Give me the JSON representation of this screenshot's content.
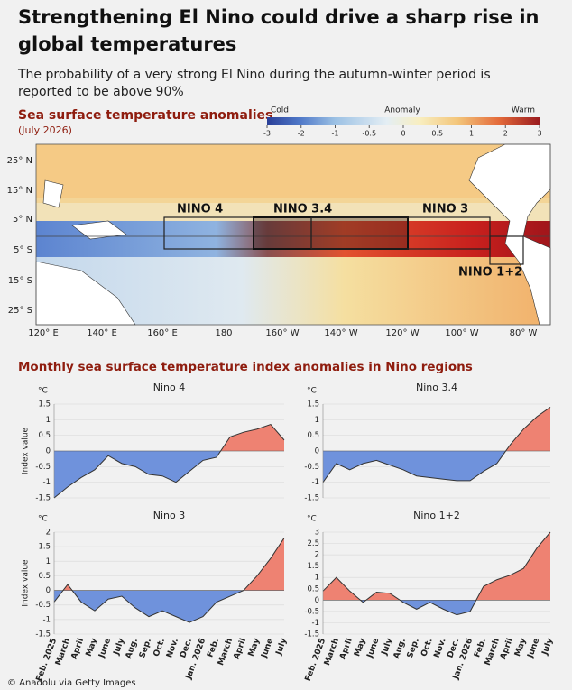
{
  "title": "Strengthening El Nino could drive a sharp rise in global temperatures",
  "subtitle": "The probability of a very strong El Nino during the autumn-winter period is reported to be above 90%",
  "map": {
    "title": "Sea surface temperature anomalies",
    "subtitle": "(July 2026)",
    "legend": {
      "cold": "Cold",
      "anomaly": "Anomaly",
      "warm": "Warm",
      "ticks": [
        -3,
        -2,
        -1,
        -0.5,
        0,
        0.5,
        1,
        2,
        3
      ]
    },
    "lat_labels": [
      "25° N",
      "15° N",
      "5° N",
      "5° S",
      "15° S",
      "25° S"
    ],
    "lon_labels": [
      "120° E",
      "140° E",
      "160° E",
      "180",
      "160° W",
      "140° W",
      "120° W",
      "100° W",
      "80° W"
    ],
    "regions": [
      "NINO 4",
      "NINO 3.4",
      "NINO 3",
      "NINO 1+2"
    ]
  },
  "section_title": "Monthly sea surface temperature index anomalies in Nino regions",
  "chart_data": [
    {
      "type": "area",
      "title": "Nino 4",
      "y_unit": "°C",
      "ylabel": "Index value",
      "ylim": [
        -1.5,
        1.5
      ],
      "yticks": [
        1.5,
        1,
        0.5,
        0,
        -0.5,
        -1,
        -1.5
      ],
      "grid": true,
      "positive_color": "#ee8272",
      "negative_color": "#6f92dc",
      "values": [
        -1.5,
        -1.15,
        -0.85,
        -0.6,
        -0.15,
        -0.4,
        -0.5,
        -0.75,
        -0.8,
        -1.0,
        -0.65,
        -0.3,
        -0.2,
        0.45,
        0.6,
        0.7,
        0.85,
        0.35
      ]
    },
    {
      "type": "area",
      "title": "Nino 3.4",
      "y_unit": "°C",
      "ylim": [
        -1.5,
        1.5
      ],
      "yticks": [
        1.5,
        1,
        0.5,
        0,
        -0.5,
        -1,
        -1.5
      ],
      "grid": true,
      "positive_color": "#ee8272",
      "negative_color": "#6f92dc",
      "values": [
        -1.0,
        -0.4,
        -0.6,
        -0.4,
        -0.3,
        -0.45,
        -0.6,
        -0.8,
        -0.85,
        -0.9,
        -0.95,
        -0.95,
        -0.65,
        -0.4,
        0.2,
        0.7,
        1.1,
        1.4
      ]
    },
    {
      "type": "area",
      "title": "Nino 3",
      "y_unit": "°C",
      "ylabel": "Index value",
      "ylim": [
        -1.5,
        2
      ],
      "yticks": [
        2,
        1.5,
        1,
        0.5,
        0,
        -0.5,
        -1,
        -1.5
      ],
      "grid": true,
      "positive_color": "#ee8272",
      "negative_color": "#6f92dc",
      "categories": [
        "Feb. 2025",
        "March",
        "April",
        "May",
        "June",
        "July",
        "Aug.",
        "Sep.",
        "Oct.",
        "Nov.",
        "Dec.",
        "Jan. 2026",
        "Feb.",
        "March",
        "April",
        "May",
        "June",
        "July"
      ],
      "values": [
        -0.4,
        0.2,
        -0.4,
        -0.7,
        -0.3,
        -0.2,
        -0.6,
        -0.9,
        -0.7,
        -0.9,
        -1.1,
        -0.9,
        -0.4,
        -0.2,
        0,
        0.5,
        1.1,
        1.8
      ]
    },
    {
      "type": "area",
      "title": "Nino 1+2",
      "y_unit": "°C",
      "ylim": [
        -1.5,
        3
      ],
      "yticks": [
        3,
        2.5,
        2,
        1.5,
        1,
        0.5,
        0,
        -0.5,
        -1,
        -1.5
      ],
      "grid": true,
      "positive_color": "#ee8272",
      "negative_color": "#6f92dc",
      "categories": [
        "Feb. 2025",
        "March",
        "April",
        "May",
        "June",
        "July",
        "Aug.",
        "Sep.",
        "Oct.",
        "Nov.",
        "Dec.",
        "Jan. 2026",
        "Feb.",
        "March",
        "April",
        "May",
        "June",
        "July"
      ],
      "values": [
        0.4,
        1.0,
        0.4,
        -0.1,
        0.35,
        0.3,
        -0.1,
        -0.4,
        -0.1,
        -0.4,
        -0.65,
        -0.5,
        0.6,
        0.9,
        1.1,
        1.4,
        2.3,
        3.0
      ]
    }
  ],
  "credit": "© Anadolu via Getty Images"
}
